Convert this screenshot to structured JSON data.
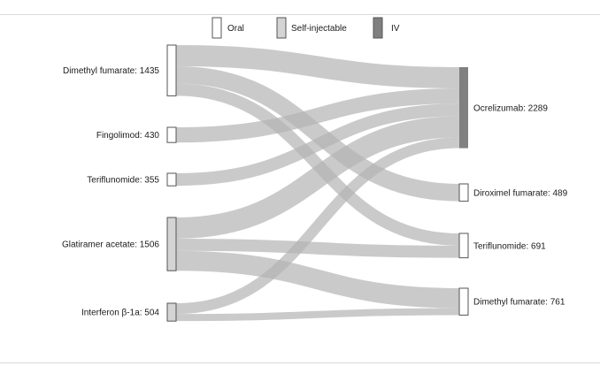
{
  "legend": {
    "items": [
      {
        "label": "Oral",
        "color": "#ffffff"
      },
      {
        "label": "Self-injectable",
        "color": "#d4d4d4"
      },
      {
        "label": "IV",
        "color": "#808080"
      }
    ]
  },
  "sources": [
    {
      "id": "dmf_src",
      "label": "Dimethyl fumarate: 1435",
      "value": 1435,
      "type": "Oral"
    },
    {
      "id": "fingo",
      "label": "Fingolimod: 430",
      "value": 430,
      "type": "Oral"
    },
    {
      "id": "teri_src",
      "label": "Teriflunomide: 355",
      "value": 355,
      "type": "Oral"
    },
    {
      "id": "glat",
      "label": "Glatiramer acetate: 1506",
      "value": 1506,
      "type": "Self-injectable"
    },
    {
      "id": "ifn",
      "label": "Interferon β-1a: 504",
      "value": 504,
      "type": "Self-injectable"
    }
  ],
  "targets": [
    {
      "id": "ocre",
      "label": "Ocrelizumab: 2289",
      "value": 2289,
      "type": "IV"
    },
    {
      "id": "drf",
      "label": "Diroximel fumarate: 489",
      "value": 489,
      "type": "Oral"
    },
    {
      "id": "teri_tgt",
      "label": "Teriflunomide: 691",
      "value": 691,
      "type": "Oral"
    },
    {
      "id": "dmf_tgt",
      "label": "Dimethyl fumarate: 761",
      "value": 761,
      "type": "Oral"
    }
  ],
  "links": [
    {
      "source": "dmf_src",
      "target": "ocre",
      "value": 600
    },
    {
      "source": "dmf_src",
      "target": "drf",
      "value": 489
    },
    {
      "source": "dmf_src",
      "target": "teri_tgt",
      "value": 346
    },
    {
      "source": "fingo",
      "target": "ocre",
      "value": 430
    },
    {
      "source": "teri_src",
      "target": "ocre",
      "value": 355
    },
    {
      "source": "glat",
      "target": "ocre",
      "value": 600
    },
    {
      "source": "glat",
      "target": "teri_tgt",
      "value": 345
    },
    {
      "source": "glat",
      "target": "dmf_tgt",
      "value": 561
    },
    {
      "source": "ifn",
      "target": "ocre",
      "value": 304
    },
    {
      "source": "ifn",
      "target": "dmf_tgt",
      "value": 200
    }
  ],
  "colors": {
    "link": "#b4b4b4",
    "node_stroke": "#555555",
    "oral_fill": "#ffffff",
    "injectable_fill": "#d4d4d4",
    "iv_fill": "#808080"
  }
}
